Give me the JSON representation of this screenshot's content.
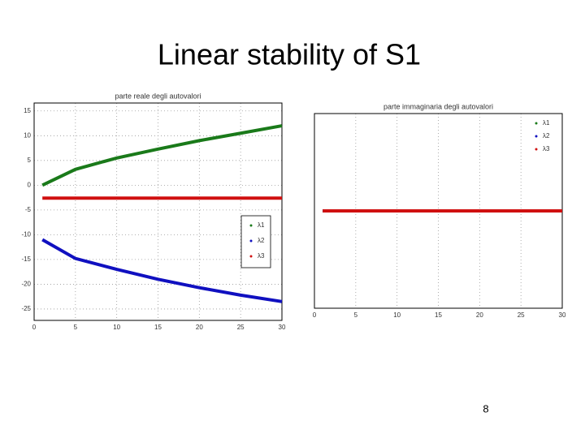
{
  "title": "Linear stability of S1",
  "page_number": "8",
  "chart_data": [
    {
      "type": "line",
      "title": "parte reale degli autovalori",
      "x": [
        1,
        5,
        10,
        15,
        20,
        25,
        30
      ],
      "series": [
        {
          "name": "λ1",
          "color": "#1a7a1a",
          "values": [
            0,
            3.2,
            5.5,
            7.3,
            9,
            10.5,
            12
          ]
        },
        {
          "name": "λ2",
          "color": "#1010c0",
          "values": [
            -11,
            -14.8,
            -17,
            -19,
            -20.7,
            -22.2,
            -23.5
          ]
        },
        {
          "name": "λ3",
          "color": "#d01010",
          "values": [
            -2.6,
            -2.6,
            -2.6,
            -2.6,
            -2.6,
            -2.6,
            -2.6
          ]
        }
      ],
      "xlim": [
        0,
        30
      ],
      "xticks": [
        0,
        5,
        10,
        15,
        20,
        25,
        30
      ],
      "ylim": [
        -27.3,
        16.6
      ],
      "yticks": [
        15,
        10,
        5,
        0,
        -5,
        -10,
        -15,
        -20,
        -25
      ],
      "grid": true,
      "legend": "right"
    },
    {
      "type": "line",
      "title": "parte immaginaria degli autovalori",
      "x": [
        1,
        5,
        10,
        15,
        20,
        25,
        30
      ],
      "series": [
        {
          "name": "λ1",
          "color": "#1a7a1a",
          "values": [
            0,
            0,
            0,
            0,
            0,
            0,
            0
          ]
        },
        {
          "name": "λ2",
          "color": "#1010c0",
          "values": [
            0,
            0,
            0,
            0,
            0,
            0,
            0
          ]
        },
        {
          "name": "λ3",
          "color": "#d01010",
          "values": [
            0,
            0,
            0,
            0,
            0,
            0,
            0
          ]
        }
      ],
      "xlim": [
        0,
        30
      ],
      "xticks": [
        0,
        5,
        10,
        15,
        20,
        25,
        30
      ],
      "ylim": [
        -1,
        1
      ],
      "grid": true,
      "legend": "upper right"
    }
  ]
}
